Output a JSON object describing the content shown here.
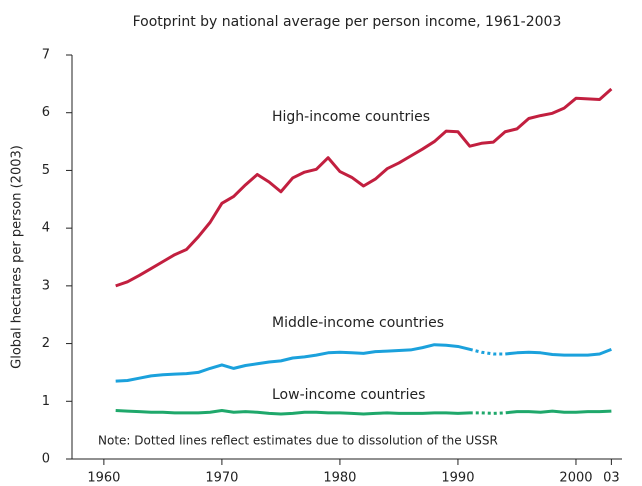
{
  "chart_data": {
    "type": "line",
    "title": "Footprint by national average per person income, 1961-2003",
    "y_label": "Global hectares per person (2003)",
    "note": "Note: Dotted lines reflect estimates due to dissolution of the USSR",
    "x": [
      1961,
      1962,
      1963,
      1964,
      1965,
      1966,
      1967,
      1968,
      1969,
      1970,
      1971,
      1972,
      1973,
      1974,
      1975,
      1976,
      1977,
      1978,
      1979,
      1980,
      1981,
      1982,
      1983,
      1984,
      1985,
      1986,
      1987,
      1988,
      1989,
      1990,
      1991,
      1992,
      1993,
      1994,
      1995,
      1996,
      1997,
      1998,
      1999,
      2000,
      2001,
      2002,
      2003
    ],
    "series": [
      {
        "name": "High-income countries",
        "color": "#c21f3f",
        "values": [
          3.0,
          3.07,
          3.18,
          3.3,
          3.42,
          3.54,
          3.63,
          3.85,
          4.1,
          4.43,
          4.55,
          4.75,
          4.93,
          4.8,
          4.63,
          4.87,
          4.97,
          5.02,
          5.22,
          4.98,
          4.88,
          4.73,
          4.85,
          5.03,
          5.13,
          5.25,
          5.37,
          5.5,
          5.68,
          5.67,
          5.42,
          5.47,
          5.49,
          5.67,
          5.72,
          5.9,
          5.95,
          5.99,
          6.08,
          6.25,
          6.24,
          6.23,
          6.41
        ]
      },
      {
        "name": "Middle-income countries",
        "color": "#1ba1dc",
        "dotted": [
          1991,
          1994
        ],
        "values": [
          1.35,
          1.36,
          1.4,
          1.44,
          1.46,
          1.47,
          1.48,
          1.5,
          1.57,
          1.63,
          1.57,
          1.62,
          1.65,
          1.68,
          1.7,
          1.75,
          1.77,
          1.8,
          1.84,
          1.85,
          1.84,
          1.83,
          1.86,
          1.87,
          1.88,
          1.89,
          1.93,
          1.98,
          1.97,
          1.95,
          1.9,
          1.85,
          1.82,
          1.82,
          1.84,
          1.85,
          1.84,
          1.81,
          1.8,
          1.8,
          1.8,
          1.82,
          1.9
        ]
      },
      {
        "name": "Low-income countries",
        "color": "#1fa86b",
        "dotted": [
          1991,
          1994
        ],
        "values": [
          0.84,
          0.83,
          0.82,
          0.81,
          0.81,
          0.8,
          0.8,
          0.8,
          0.81,
          0.84,
          0.81,
          0.82,
          0.81,
          0.79,
          0.78,
          0.79,
          0.81,
          0.81,
          0.8,
          0.8,
          0.79,
          0.78,
          0.79,
          0.8,
          0.79,
          0.79,
          0.79,
          0.8,
          0.8,
          0.79,
          0.8,
          0.8,
          0.79,
          0.8,
          0.82,
          0.82,
          0.81,
          0.83,
          0.81,
          0.81,
          0.82,
          0.82,
          0.83
        ]
      }
    ],
    "xlim": [
      1957.3,
      2003.9
    ],
    "xticks": [
      1960,
      1970,
      1980,
      1990,
      2000,
      {
        "value": 2003,
        "label": "03"
      }
    ],
    "ylim": [
      0,
      7
    ],
    "yticks": [
      0,
      1,
      2,
      3,
      4,
      5,
      6,
      7
    ]
  }
}
